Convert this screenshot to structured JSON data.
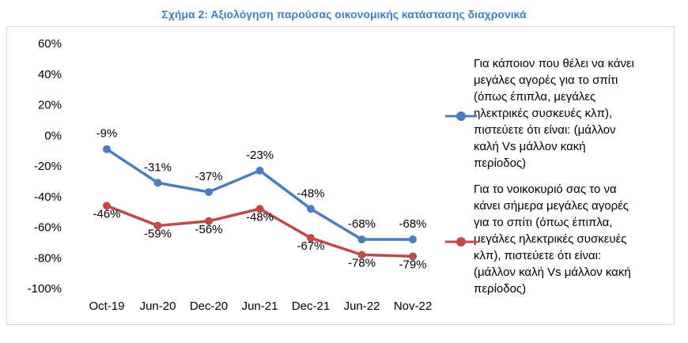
{
  "chart_data": {
    "type": "line",
    "title": "Σχήμα 2: Αξιολόγηση παρούσας οικονομικής κατάστασης διαχρονικά",
    "categories": [
      "Oct-19",
      "Jun-20",
      "Dec-20",
      "Jun-21",
      "Dec-21",
      "Jun-22",
      "Nov-22"
    ],
    "ylim": [
      -100,
      60
    ],
    "yticks": [
      60,
      40,
      20,
      0,
      -20,
      -40,
      -60,
      -80,
      -100
    ],
    "ytick_labels": [
      "60%",
      "40%",
      "20%",
      "0%",
      "-20%",
      "-40%",
      "-60%",
      "-80%",
      "-100%"
    ],
    "grid": false,
    "legend_position": "right",
    "series": [
      {
        "name": "Για κάποιον που θέλει να κάνει μεγάλες αγορές για το σπίτι (όπως έπιπλα, μεγάλες ηλεκτρικές συσκευές κλπ), πιστεύετε ότι είναι: (μάλλον καλή Vs μάλλον κακή περίοδος)",
        "legend_lines": [
          "Για κάποιον που θέλει να κάνει",
          "μεγάλες αγορές για το σπίτι",
          "(όπως έπιπλα, μεγάλες",
          "ηλεκτρικές συσκευές κλπ),",
          "πιστεύετε ότι είναι: (μάλλον",
          "καλή Vs μάλλον κακή",
          "περίοδος)"
        ],
        "color": "#4a7ebb",
        "values": [
          -9,
          -31,
          -37,
          -23,
          -48,
          -68,
          -68
        ],
        "labels": [
          "-9%",
          "-31%",
          "-37%",
          "-23%",
          "-48%",
          "-68%",
          "-68%"
        ]
      },
      {
        "name": "Για το νοικοκυριό σας το να κάνει σήμερα μεγάλες αγορές για το σπίτι (όπως έπιπλα, μεγάλες ηλεκτρικές συσκευές κλπ), πιστεύετε ότι είναι: (μάλλον καλή Vs μάλλον κακή περίοδος)",
        "legend_lines": [
          "Για το νοικοκυριό σας το να",
          "κάνει σήμερα μεγάλες αγορές",
          "για το σπίτι (όπως έπιπλα,",
          "μεγάλες ηλεκτρικές συσκευές",
          "κλπ), πιστεύετε ότι είναι:",
          "(μάλλον καλή Vs μάλλον κακή",
          "περίοδος)"
        ],
        "color": "#be4b48",
        "values": [
          -46,
          -59,
          -56,
          -48,
          -67,
          -78,
          -79
        ],
        "labels": [
          "-46%",
          "-59%",
          "-56%",
          "-48%",
          "-67%",
          "-78%",
          "-79%"
        ]
      }
    ]
  }
}
